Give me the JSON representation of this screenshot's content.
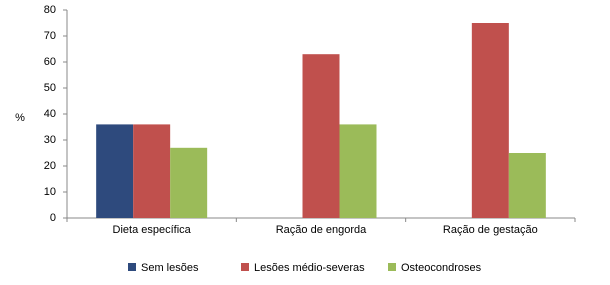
{
  "chart_data": {
    "type": "bar",
    "y_label": "%",
    "categories": [
      "Dieta específica",
      "Ração de engorda",
      "Ração de gestação"
    ],
    "series": [
      {
        "name": "Sem lesões",
        "color": "#2e4a7d",
        "values": [
          36,
          0,
          0
        ]
      },
      {
        "name": "Lesões médio-severas",
        "color": "#c0504d",
        "values": [
          36,
          63,
          75
        ]
      },
      {
        "name": "Osteocondroses",
        "color": "#9bbb59",
        "values": [
          27,
          36,
          25
        ]
      }
    ],
    "ylim": [
      0,
      80
    ],
    "yticks": [
      0,
      10,
      20,
      30,
      40,
      50,
      60,
      70,
      80
    ],
    "grid": false
  }
}
